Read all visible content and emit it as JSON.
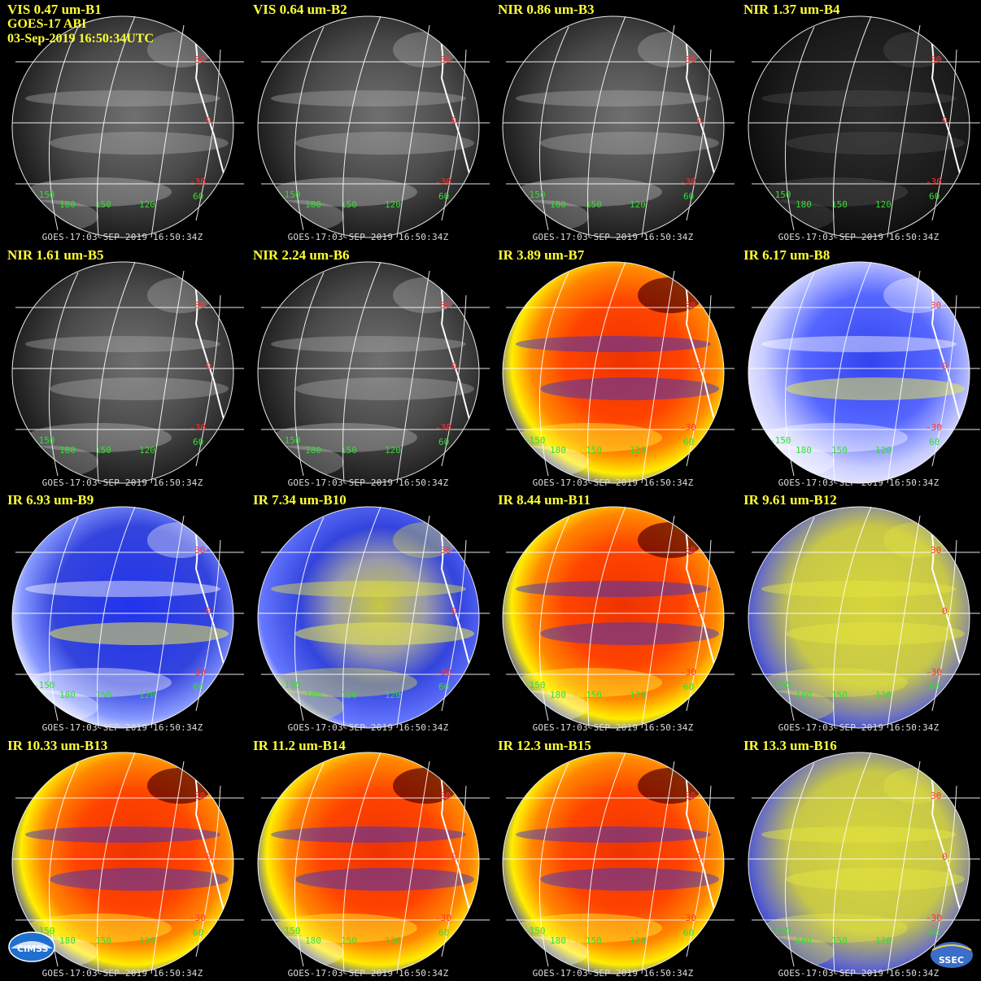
{
  "footer": "GOES-17:03-SEP-2019 16:50:34Z",
  "info_lines": [
    "GOES-17 ABI",
    "03-Sep-2019 16:50:34UTC"
  ],
  "lat_labels": [
    "30",
    "0",
    "-30"
  ],
  "lon_labels": [
    "-150",
    "180",
    "150",
    "120",
    "60"
  ],
  "logos": {
    "left": "CIMSS",
    "right": "SSEC"
  },
  "palettes": {
    "vis": {
      "dark": "#1a1a1a",
      "light": "#9a9a9a"
    },
    "red": {
      "base": "#ee3300",
      "hot": "#ff8800",
      "cold": "#ffee00",
      "rim": "#2233dd"
    },
    "blue": {
      "base": "#2a3bdd",
      "light": "#aab4ff"
    },
    "yellow": {
      "base": "#d6d63a",
      "rim": "#2a3bdd"
    }
  },
  "panels": [
    {
      "title": "VIS 0.47 um-B1",
      "style": "vis"
    },
    {
      "title": "VIS 0.64 um-B2",
      "style": "vis"
    },
    {
      "title": "NIR 0.86 um-B3",
      "style": "vis"
    },
    {
      "title": "NIR 1.37 um-B4",
      "style": "dark"
    },
    {
      "title": "NIR 1.61 um-B5",
      "style": "vis"
    },
    {
      "title": "NIR 2.24 um-B6",
      "style": "vis"
    },
    {
      "title": "IR 3.89 um-B7",
      "style": "red"
    },
    {
      "title": "IR 6.17 um-B8",
      "style": "wv"
    },
    {
      "title": "IR 6.93 um-B9",
      "style": "wv2"
    },
    {
      "title": "IR 7.34 um-B10",
      "style": "wv3"
    },
    {
      "title": "IR 8.44 um-B11",
      "style": "red"
    },
    {
      "title": "IR 9.61 um-B12",
      "style": "yellow"
    },
    {
      "title": "IR 10.33 um-B13",
      "style": "red"
    },
    {
      "title": "IR 11.2 um-B14",
      "style": "red"
    },
    {
      "title": "IR 12.3 um-B15",
      "style": "red"
    },
    {
      "title": "IR 13.3 um-B16",
      "style": "yellow"
    }
  ]
}
